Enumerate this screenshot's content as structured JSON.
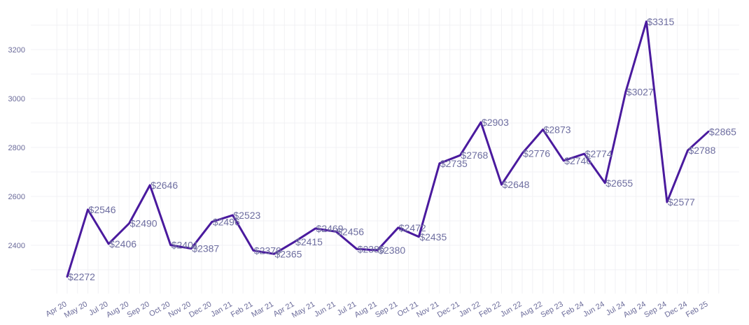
{
  "chart_data": {
    "type": "line",
    "title": "",
    "xlabel": "",
    "ylabel": "",
    "categories": [
      "Apr 20",
      "May 20",
      "Jul 20",
      "Aug 20",
      "Sep 20",
      "Oct 20",
      "Nov 20",
      "Dec 20",
      "Jan 21",
      "Feb 21",
      "Mar 21",
      "Apr 21",
      "May 21",
      "Jun 21",
      "Jul 21",
      "Aug 21",
      "Sep 21",
      "Oct 21",
      "Nov 21",
      "Dec 21",
      "Jan 22",
      "Feb 22",
      "Jun 22",
      "Aug 22",
      "Sep 23",
      "Feb 24",
      "Jun 24",
      "Jul 24",
      "Aug 24",
      "Sep 24",
      "Dec 24",
      "Feb 25"
    ],
    "values": [
      2272,
      2546,
      2406,
      2490,
      2646,
      2401,
      2387,
      2496,
      2523,
      2379,
      2365,
      2415,
      2469,
      2456,
      2385,
      2380,
      2472,
      2435,
      2735,
      2768,
      2903,
      2648,
      2776,
      2873,
      2746,
      2774,
      2655,
      3027,
      3315,
      2577,
      2788,
      2865
    ],
    "data_labels": [
      "$2272",
      "$2546",
      "$2406",
      "$2490",
      "$2646",
      "$2401",
      "$2387",
      "$2496",
      "$2523",
      "$2379",
      "$2365",
      "$2415",
      "$2469",
      "$2456",
      "$2385",
      "$2380",
      "$2472",
      "$2435",
      "$2735",
      "$2768",
      "$2903",
      "$2648",
      "$2776",
      "$2873",
      "$2746",
      "$2774",
      "$2655",
      "$3027",
      "$3315",
      "$2577",
      "$2788",
      "$2865"
    ],
    "yticks": [
      2400,
      2600,
      2800,
      3000,
      3200
    ],
    "ylim": [
      2220,
      3345
    ],
    "grid": true,
    "legend": "none",
    "line_color": "#4a1a9e"
  }
}
